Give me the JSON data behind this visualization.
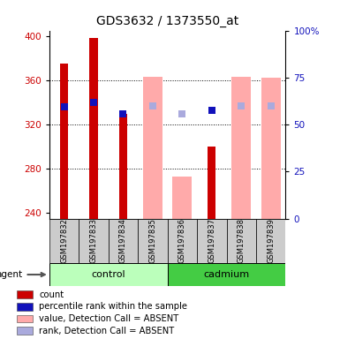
{
  "title": "GDS3632 / 1373550_at",
  "samples": [
    "GSM197832",
    "GSM197833",
    "GSM197834",
    "GSM197835",
    "GSM197836",
    "GSM197837",
    "GSM197838",
    "GSM197839"
  ],
  "ylim_left": [
    235,
    405
  ],
  "yticks_left": [
    240,
    280,
    320,
    360,
    400
  ],
  "yticks_right": [
    0,
    25,
    50,
    75,
    100
  ],
  "bar_base": 235,
  "count_values": [
    375,
    398,
    330,
    null,
    null,
    300,
    null,
    null
  ],
  "rank_values": [
    336,
    340,
    330,
    null,
    null,
    333,
    null,
    null
  ],
  "absent_value_values": [
    null,
    null,
    null,
    363,
    273,
    null,
    363,
    362
  ],
  "absent_rank_values": [
    null,
    null,
    null,
    337,
    330,
    null,
    337,
    337
  ],
  "count_color": "#cc0000",
  "rank_color": "#1111bb",
  "absent_value_color": "#ffaaaa",
  "absent_rank_color": "#aaaadd",
  "control_bg": "#bbffbb",
  "cadmium_bg": "#44cc44",
  "sample_bg": "#cccccc"
}
